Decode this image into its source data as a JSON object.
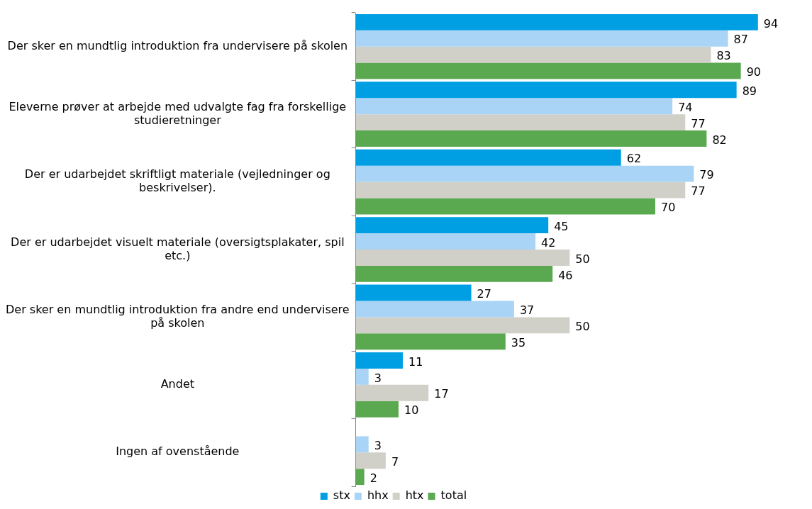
{
  "chart_data": {
    "type": "bar",
    "orientation": "horizontal",
    "data_labels": true,
    "legend": "bottom",
    "tick_labels": "y",
    "categories": [
      "Der sker en mundtlig introduktion fra undervisere på skolen",
      "Eleverne prøver at arbejde med udvalgte fag fra forskellige studieretninger",
      "Der er udarbejdet skriftligt materiale (vejledninger og beskrivelser).",
      "Der er udarbejdet visuelt materiale (oversigtsplakater, spil etc.)",
      "Der sker en mundtlig introduktion fra andre end undervisere på skolen",
      "Andet",
      "Ingen af ovenstående"
    ],
    "series": [
      {
        "name": "stx",
        "color": "#009fe3",
        "values": [
          94,
          89,
          62,
          45,
          27,
          11,
          null
        ]
      },
      {
        "name": "hhx",
        "color": "#a9d4f5",
        "values": [
          87,
          74,
          79,
          42,
          37,
          3,
          3
        ]
      },
      {
        "name": "htx",
        "color": "#d0cfc8",
        "values": [
          83,
          77,
          77,
          50,
          50,
          17,
          7
        ]
      },
      {
        "name": "total",
        "color": "#5aa84f",
        "values": [
          90,
          82,
          70,
          46,
          35,
          10,
          2
        ]
      }
    ]
  }
}
